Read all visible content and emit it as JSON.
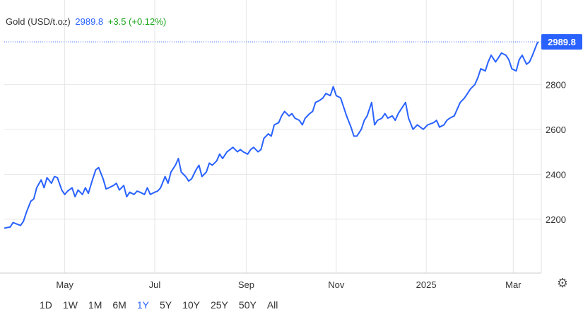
{
  "header": {
    "instrument": "Gold (USD/t.oz)",
    "price": "2989.8",
    "change": "+3.5 (+0.12%)"
  },
  "last_price_label": "2989.8",
  "range_buttons": [
    "1D",
    "1W",
    "1M",
    "6M",
    "1Y",
    "5Y",
    "10Y",
    "25Y",
    "50Y",
    "All"
  ],
  "active_range": "1Y",
  "icons": {
    "settings": "gear-icon"
  },
  "colors": {
    "line": "#2962ff",
    "positive": "#1aa51a",
    "price": "#2962ff",
    "grid": "#e6e6e6"
  },
  "chart_data": {
    "type": "line",
    "xlabel": "",
    "ylabel": "",
    "ylim": [
      1960,
      3050
    ],
    "xlim": [
      "2024-03-21",
      "2025-03-20"
    ],
    "x_ticks": [
      {
        "date": "2024-05-01",
        "label": "May"
      },
      {
        "date": "2024-07-01",
        "label": "Jul"
      },
      {
        "date": "2024-09-01",
        "label": "Sep"
      },
      {
        "date": "2024-11-01",
        "label": "Nov"
      },
      {
        "date": "2025-01-01",
        "label": "2025"
      },
      {
        "date": "2025-03-01",
        "label": "Mar"
      }
    ],
    "y_ticks": [
      2200,
      2400,
      2600,
      2800
    ],
    "grid": true,
    "series": [
      {
        "x": [
          "2024-03-21",
          "2024-03-25",
          "2024-03-27",
          "2024-04-01",
          "2024-04-03",
          "2024-04-05",
          "2024-04-08",
          "2024-04-10",
          "2024-04-12",
          "2024-04-15",
          "2024-04-17",
          "2024-04-19",
          "2024-04-22",
          "2024-04-24",
          "2024-04-26",
          "2024-04-29",
          "2024-05-01",
          "2024-05-03",
          "2024-05-06",
          "2024-05-08",
          "2024-05-10",
          "2024-05-13",
          "2024-05-15",
          "2024-05-17",
          "2024-05-20",
          "2024-05-22",
          "2024-05-24",
          "2024-05-27",
          "2024-05-29",
          "2024-05-31",
          "2024-06-03",
          "2024-06-05",
          "2024-06-07",
          "2024-06-10",
          "2024-06-12",
          "2024-06-14",
          "2024-06-17",
          "2024-06-19",
          "2024-06-21",
          "2024-06-24",
          "2024-06-26",
          "2024-06-28",
          "2024-07-01",
          "2024-07-03",
          "2024-07-05",
          "2024-07-08",
          "2024-07-10",
          "2024-07-12",
          "2024-07-15",
          "2024-07-17",
          "2024-07-19",
          "2024-07-22",
          "2024-07-24",
          "2024-07-26",
          "2024-07-29",
          "2024-07-31",
          "2024-08-02",
          "2024-08-05",
          "2024-08-07",
          "2024-08-09",
          "2024-08-12",
          "2024-08-14",
          "2024-08-16",
          "2024-08-19",
          "2024-08-21",
          "2024-08-23",
          "2024-08-26",
          "2024-08-28",
          "2024-08-30",
          "2024-09-02",
          "2024-09-04",
          "2024-09-06",
          "2024-09-09",
          "2024-09-11",
          "2024-09-13",
          "2024-09-16",
          "2024-09-18",
          "2024-09-20",
          "2024-09-23",
          "2024-09-25",
          "2024-09-27",
          "2024-09-30",
          "2024-10-02",
          "2024-10-04",
          "2024-10-07",
          "2024-10-09",
          "2024-10-11",
          "2024-10-14",
          "2024-10-16",
          "2024-10-18",
          "2024-10-21",
          "2024-10-23",
          "2024-10-25",
          "2024-10-28",
          "2024-10-30",
          "2024-11-01",
          "2024-11-04",
          "2024-11-06",
          "2024-11-08",
          "2024-11-11",
          "2024-11-13",
          "2024-11-15",
          "2024-11-18",
          "2024-11-20",
          "2024-11-22",
          "2024-11-25",
          "2024-11-27",
          "2024-11-29",
          "2024-12-02",
          "2024-12-04",
          "2024-12-06",
          "2024-12-09",
          "2024-12-11",
          "2024-12-13",
          "2024-12-16",
          "2024-12-18",
          "2024-12-20",
          "2024-12-23",
          "2024-12-26",
          "2024-12-30",
          "2025-01-02",
          "2025-01-06",
          "2025-01-08",
          "2025-01-10",
          "2025-01-13",
          "2025-01-15",
          "2025-01-17",
          "2025-01-20",
          "2025-01-22",
          "2025-01-24",
          "2025-01-27",
          "2025-01-29",
          "2025-01-31",
          "2025-02-03",
          "2025-02-05",
          "2025-02-07",
          "2025-02-10",
          "2025-02-12",
          "2025-02-14",
          "2025-02-17",
          "2025-02-19",
          "2025-02-21",
          "2025-02-24",
          "2025-02-26",
          "2025-02-28",
          "2025-03-03",
          "2025-03-05",
          "2025-03-07",
          "2025-03-10",
          "2025-03-12",
          "2025-03-14",
          "2025-03-17",
          "2025-03-18"
        ],
        "y": [
          2160,
          2165,
          2185,
          2172,
          2190,
          2230,
          2280,
          2290,
          2340,
          2375,
          2340,
          2385,
          2360,
          2390,
          2385,
          2330,
          2310,
          2325,
          2340,
          2300,
          2330,
          2310,
          2340,
          2315,
          2380,
          2420,
          2430,
          2380,
          2335,
          2340,
          2350,
          2360,
          2330,
          2350,
          2300,
          2320,
          2310,
          2325,
          2320,
          2310,
          2340,
          2310,
          2320,
          2325,
          2340,
          2390,
          2360,
          2410,
          2440,
          2470,
          2410,
          2390,
          2370,
          2380,
          2420,
          2440,
          2390,
          2410,
          2450,
          2440,
          2460,
          2490,
          2470,
          2500,
          2510,
          2520,
          2500,
          2510,
          2500,
          2490,
          2510,
          2520,
          2500,
          2510,
          2560,
          2580,
          2570,
          2620,
          2630,
          2660,
          2680,
          2660,
          2670,
          2650,
          2640,
          2620,
          2650,
          2670,
          2680,
          2720,
          2730,
          2740,
          2760,
          2750,
          2790,
          2750,
          2740,
          2700,
          2660,
          2610,
          2570,
          2570,
          2600,
          2640,
          2660,
          2720,
          2620,
          2640,
          2650,
          2670,
          2650,
          2660,
          2640,
          2670,
          2700,
          2720,
          2650,
          2600,
          2620,
          2600,
          2620,
          2630,
          2640,
          2610,
          2620,
          2640,
          2650,
          2660,
          2690,
          2720,
          2740,
          2760,
          2780,
          2800,
          2830,
          2870,
          2860,
          2900,
          2930,
          2900,
          2920,
          2940,
          2930,
          2910,
          2870,
          2860,
          2910,
          2930,
          2890,
          2900,
          2930,
          2980,
          2990
        ]
      }
    ],
    "last_value": 2989.8
  }
}
